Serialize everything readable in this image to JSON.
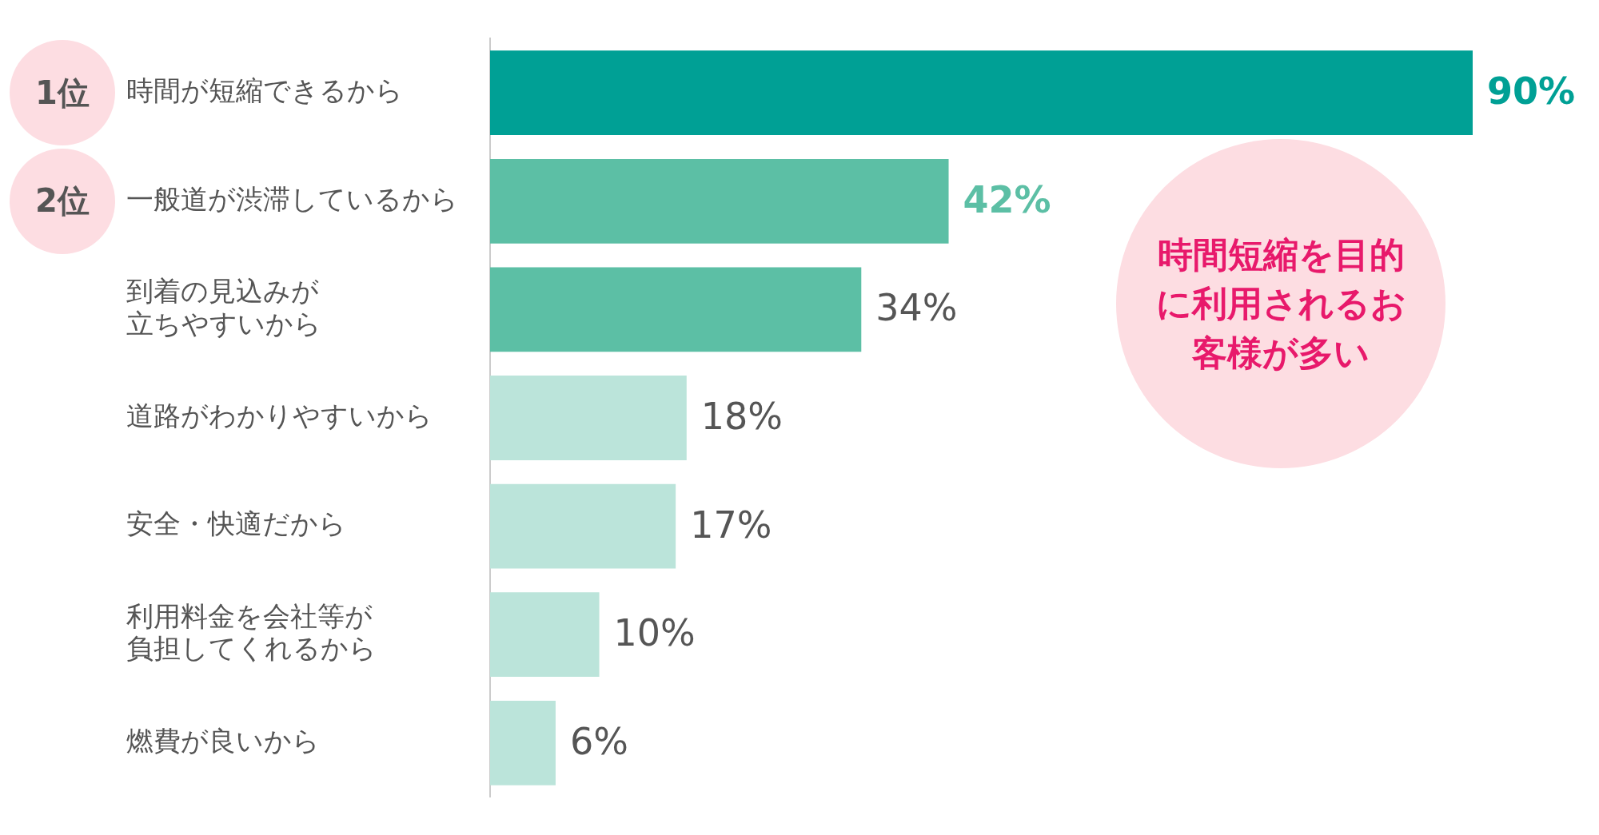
{
  "chart_data": {
    "type": "bar",
    "orientation": "horizontal",
    "categories": [
      "時間が短縮できるから",
      "一般道が渋滞しているから",
      "到着の見込みが立ちやすいから",
      "道路がわかりやすいから",
      "安全・快適だから",
      "利用料金を会社等が負担してくれるから",
      "燃費が良いから"
    ],
    "values": [
      90,
      42,
      34,
      18,
      17,
      10,
      6
    ],
    "colors": [
      "#00a095",
      "#5cbfa5",
      "#5cbfa5",
      "#bbe4da",
      "#bbe4da",
      "#bbe4da",
      "#bbe4da"
    ],
    "value_labels": [
      "90%",
      "42%",
      "34%",
      "18%",
      "17%",
      "10%",
      "6%"
    ],
    "tick_labels": "y",
    "grid": false,
    "legend": false,
    "annotations": [
      "1位",
      "2位",
      "時間短縮を目的に利用されるお客様が多い"
    ]
  }
}
